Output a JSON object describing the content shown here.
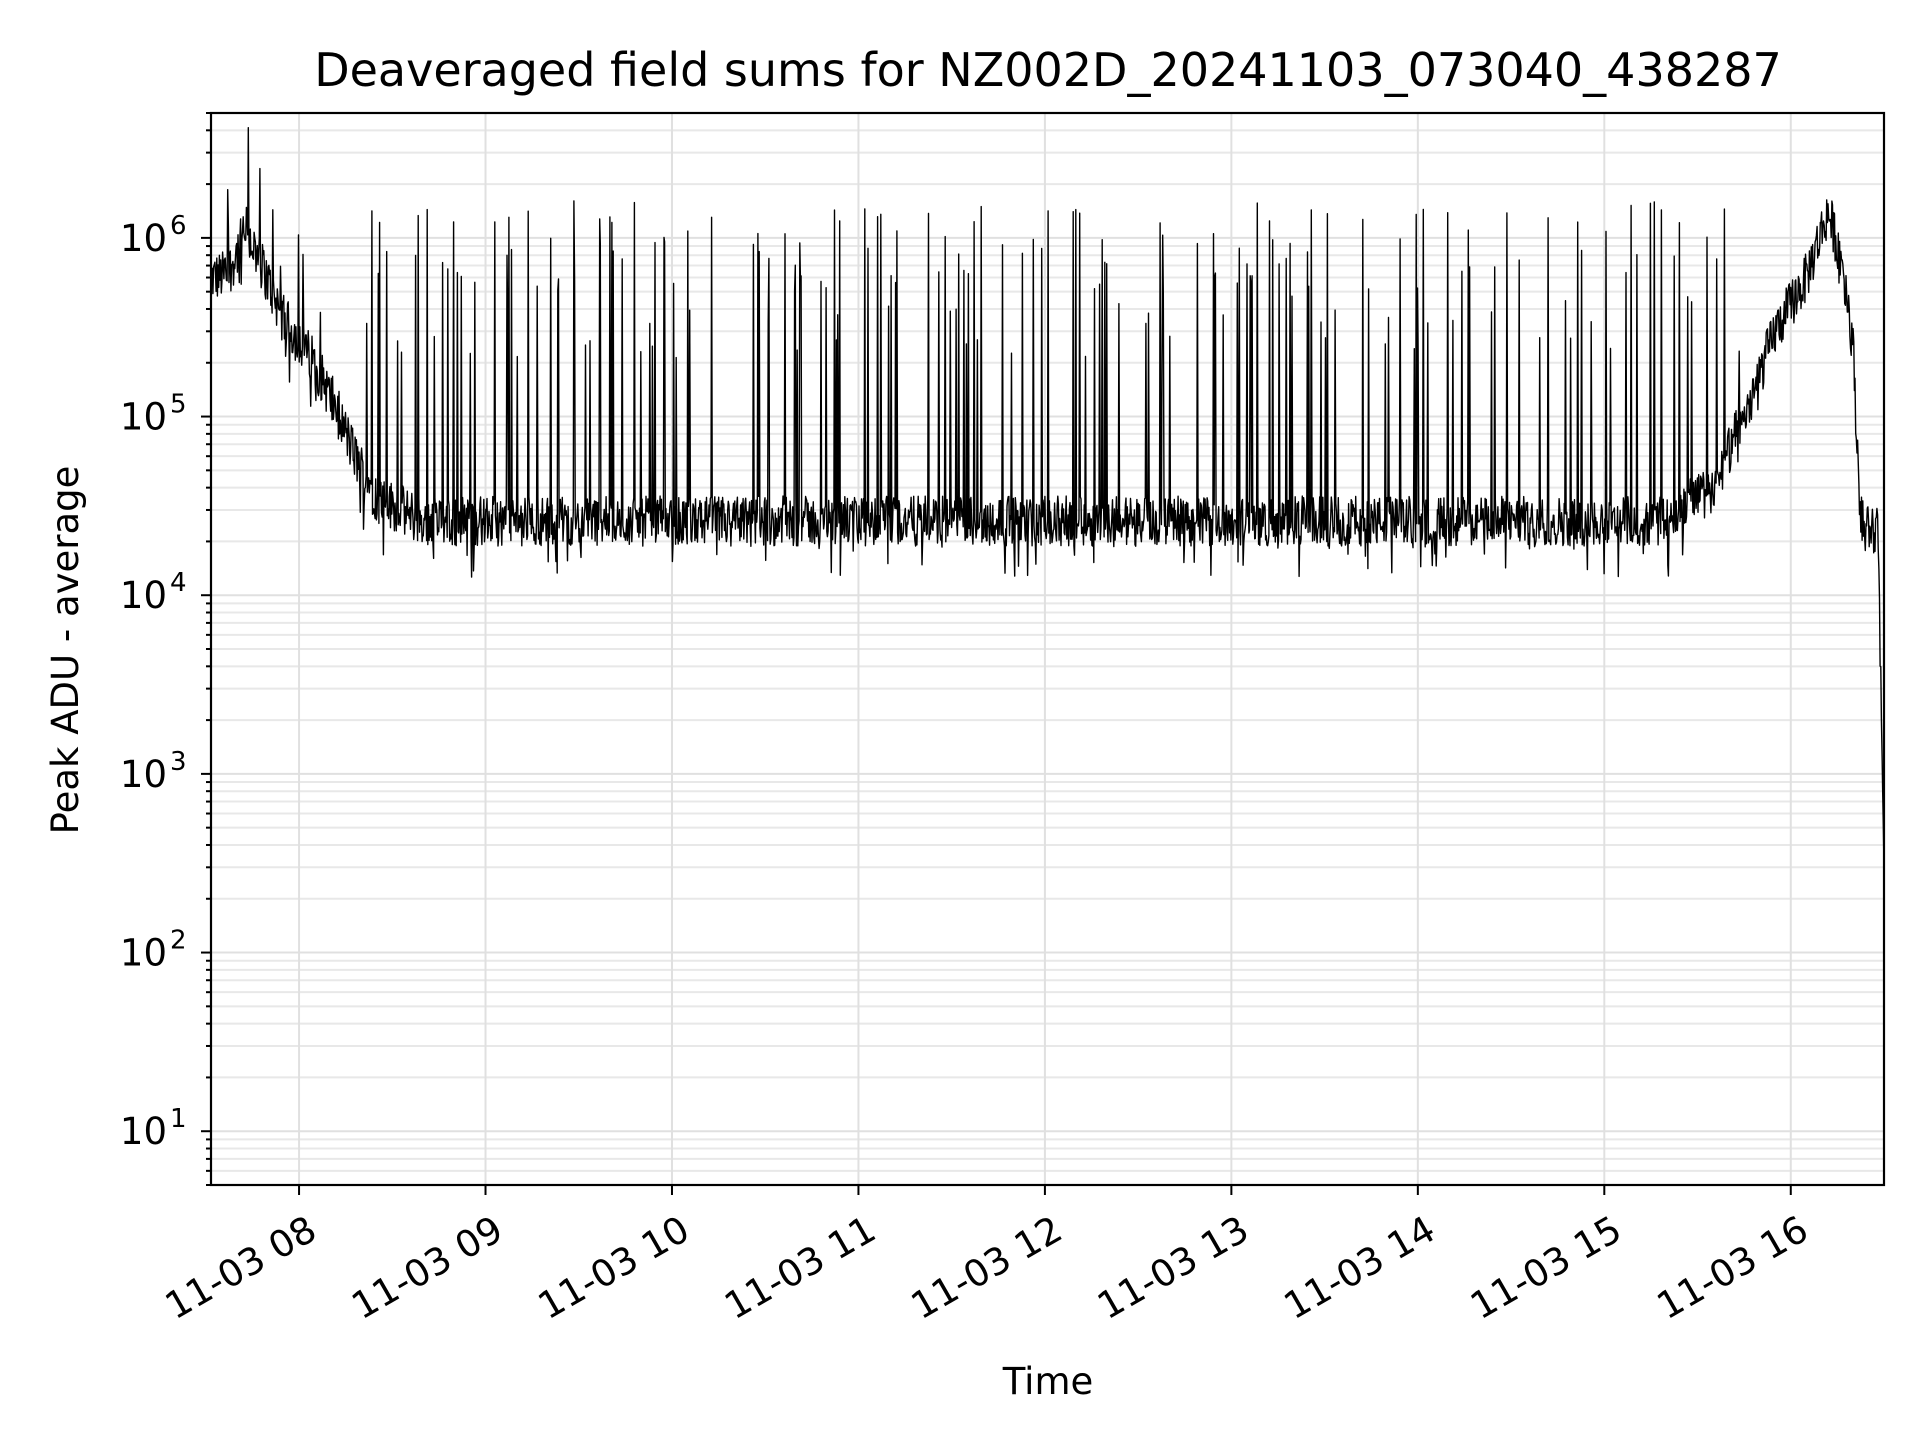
{
  "chart_data": {
    "type": "line",
    "title": "Deaveraged field sums for NZ002D_20241103_073040_438287",
    "xlabel": "Time",
    "ylabel": "Peak ADU - average",
    "yscale": "log",
    "ylim": [
      5,
      5000000
    ],
    "xlim": [
      "2024-11-03 07:31:40",
      "2024-11-03 16:30:00"
    ],
    "grid": "major and minor",
    "x_ticks": [
      {
        "time": "2024-11-03 08:00",
        "label": "11-03 08"
      },
      {
        "time": "2024-11-03 09:00",
        "label": "11-03 09"
      },
      {
        "time": "2024-11-03 10:00",
        "label": "11-03 10"
      },
      {
        "time": "2024-11-03 11:00",
        "label": "11-03 11"
      },
      {
        "time": "2024-11-03 12:00",
        "label": "11-03 12"
      },
      {
        "time": "2024-11-03 13:00",
        "label": "11-03 13"
      },
      {
        "time": "2024-11-03 14:00",
        "label": "11-03 14"
      },
      {
        "time": "2024-11-03 15:00",
        "label": "11-03 15"
      },
      {
        "time": "2024-11-03 16:00",
        "label": "11-03 16"
      }
    ],
    "y_ticks": [
      {
        "value": 10,
        "base": "10",
        "exp": "1"
      },
      {
        "value": 100,
        "base": "10",
        "exp": "2"
      },
      {
        "value": 1000,
        "base": "10",
        "exp": "3"
      },
      {
        "value": 10000,
        "base": "10",
        "exp": "4"
      },
      {
        "value": 100000,
        "base": "10",
        "exp": "5"
      },
      {
        "value": 1000000,
        "base": "10",
        "exp": "6"
      }
    ],
    "series": [
      {
        "color": "#000000",
        "baseline_points": [
          {
            "x": "2024-11-03 07:31:40",
            "y": 600000
          },
          {
            "x": "2024-11-03 07:37:00",
            "y": 620000
          },
          {
            "x": "2024-11-03 07:43:00",
            "y": 1100000
          },
          {
            "x": "2024-11-03 07:48:00",
            "y": 700000
          },
          {
            "x": "2024-11-03 07:55:00",
            "y": 350000
          },
          {
            "x": "2024-11-03 08:05:00",
            "y": 200000
          },
          {
            "x": "2024-11-03 08:12:00",
            "y": 110000
          },
          {
            "x": "2024-11-03 08:18:00",
            "y": 60000
          },
          {
            "x": "2024-11-03 08:25:00",
            "y": 35000
          },
          {
            "x": "2024-11-03 08:40:00",
            "y": 26000
          },
          {
            "x": "2024-11-03 15:20:00",
            "y": 26000
          },
          {
            "x": "2024-11-03 15:35:00",
            "y": 40000
          },
          {
            "x": "2024-11-03 15:45:00",
            "y": 100000
          },
          {
            "x": "2024-11-03 15:55:00",
            "y": 300000
          },
          {
            "x": "2024-11-03 16:05:00",
            "y": 600000
          },
          {
            "x": "2024-11-03 16:10:00",
            "y": 1100000
          },
          {
            "x": "2024-11-03 16:12:00",
            "y": 1400000
          },
          {
            "x": "2024-11-03 16:17:00",
            "y": 700000
          },
          {
            "x": "2024-11-03 16:20:00",
            "y": 250000
          },
          {
            "x": "2024-11-03 16:22:00",
            "y": 40000
          },
          {
            "x": "2024-11-03 16:23:00",
            "y": 25000
          },
          {
            "x": "2024-11-03 16:28:00",
            "y": 23000
          },
          {
            "x": "2024-11-03 16:29:00",
            "y": 3000
          },
          {
            "x": "2024-11-03 16:30:00",
            "y": 300
          }
        ],
        "spike_level": 1000000,
        "spike_window": [
          "2024-11-03 08:20:00",
          "2024-11-03 15:45:00"
        ]
      }
    ]
  }
}
